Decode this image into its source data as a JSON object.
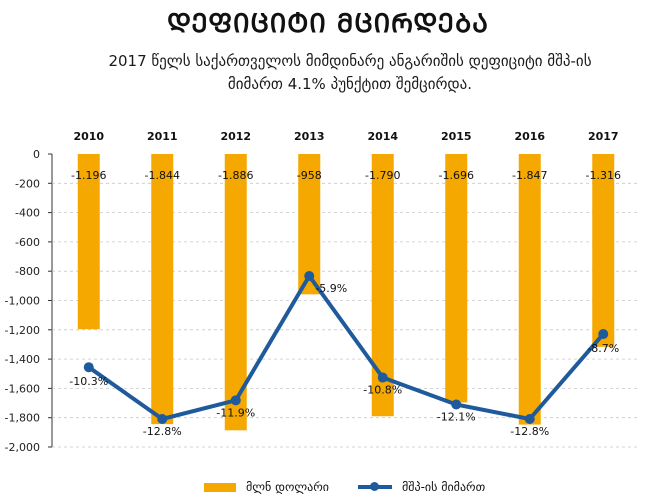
{
  "title": "ᲓᲔᲤᲘᲪᲘᲢᲘ ᲛᲪᲘᲠᲓᲔᲑᲐ",
  "subtitle_line1": "2017 წელს საქართველოს მიმდინარე ანგარიშის დეფიციტი მშპ-ის",
  "subtitle_line2": "მიმართ 4.1% პუნქტით შემცირდა.",
  "colors": {
    "bar": "#F5A800",
    "line": "#1F5A9C",
    "grid": "#C8C8C8",
    "axis": "#333333"
  },
  "chart_data": {
    "type": "bar",
    "categories": [
      "2010",
      "2011",
      "2012",
      "2013",
      "2014",
      "2015",
      "2016",
      "2017"
    ],
    "ylim": [
      -2000,
      0
    ],
    "yticks": [
      0,
      -200,
      -400,
      -600,
      -800,
      -1000,
      -1200,
      -1400,
      -1600,
      -1800,
      -2000
    ],
    "ytick_labels": [
      "0",
      "-200",
      "-400",
      "-600",
      "-800",
      "-1,000",
      "-1,200",
      "-1,400",
      "-1,600",
      "-1,800",
      "-2,000"
    ],
    "series": [
      {
        "name": "მლნ დოლარი",
        "type": "bar",
        "values": [
          -1196,
          -1844,
          -1886,
          -958,
          -1790,
          -1696,
          -1847,
          -1316
        ],
        "labels": [
          "-1.196",
          "-1.844",
          "-1.886",
          "-958",
          "-1.790",
          "-1.696",
          "-1.847",
          "-1.316"
        ]
      },
      {
        "name": "მშპ-ის მიმართ",
        "type": "line",
        "values": [
          -10.3,
          -12.8,
          -11.9,
          -5.9,
          -10.8,
          -12.1,
          -12.8,
          -8.7
        ],
        "labels": [
          "-10.3%",
          "-12.8%",
          "-11.9%",
          "-5.9%",
          "-10.8%",
          "-12.1%",
          "-12.8%",
          "-8.7%"
        ]
      }
    ]
  }
}
